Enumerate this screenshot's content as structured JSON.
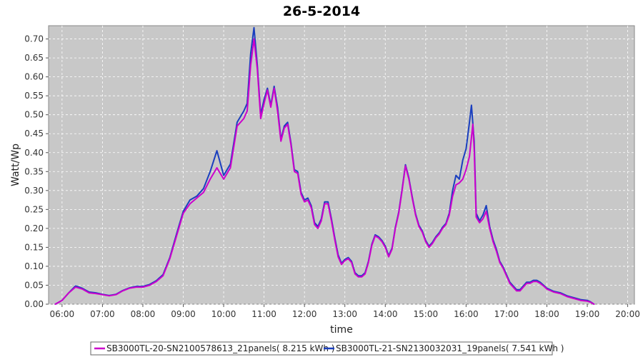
{
  "chart_data": {
    "type": "line",
    "title": "26-5-2014",
    "xlabel": "time",
    "ylabel": "Watt/Wp",
    "x_ticks": [
      "06:00",
      "07:00",
      "08:00",
      "09:00",
      "10:00",
      "11:00",
      "12:00",
      "13:00",
      "14:00",
      "15:00",
      "16:00",
      "17:00",
      "18:00",
      "19:00",
      "20:00"
    ],
    "y_ticks": [
      "0.00",
      "0.05",
      "0.10",
      "0.15",
      "0.20",
      "0.25",
      "0.30",
      "0.35",
      "0.40",
      "0.45",
      "0.50",
      "0.55",
      "0.60",
      "0.65",
      "0.70"
    ],
    "xlim": [
      "05:40",
      "20:10"
    ],
    "ylim": [
      0,
      0.735
    ],
    "grid": true,
    "legend_position": "bottom",
    "series": [
      {
        "name": "SB3000TL-20-SN2100578613_21panels( 8.215 kWh )",
        "color": "#cc00cc",
        "points": [
          [
            "05:50",
            0.0
          ],
          [
            "06:00",
            0.01
          ],
          [
            "06:10",
            0.03
          ],
          [
            "06:20",
            0.045
          ],
          [
            "06:30",
            0.04
          ],
          [
            "06:40",
            0.03
          ],
          [
            "06:50",
            0.028
          ],
          [
            "07:00",
            0.025
          ],
          [
            "07:10",
            0.022
          ],
          [
            "07:20",
            0.025
          ],
          [
            "07:30",
            0.035
          ],
          [
            "07:40",
            0.042
          ],
          [
            "07:50",
            0.045
          ],
          [
            "08:00",
            0.045
          ],
          [
            "08:10",
            0.05
          ],
          [
            "08:20",
            0.06
          ],
          [
            "08:30",
            0.075
          ],
          [
            "08:40",
            0.12
          ],
          [
            "08:50",
            0.18
          ],
          [
            "09:00",
            0.24
          ],
          [
            "09:10",
            0.265
          ],
          [
            "09:20",
            0.28
          ],
          [
            "09:30",
            0.295
          ],
          [
            "09:40",
            0.33
          ],
          [
            "09:50",
            0.36
          ],
          [
            "10:00",
            0.33
          ],
          [
            "10:10",
            0.36
          ],
          [
            "10:20",
            0.47
          ],
          [
            "10:30",
            0.49
          ],
          [
            "10:35",
            0.51
          ],
          [
            "10:40",
            0.63
          ],
          [
            "10:45",
            0.7
          ],
          [
            "10:50",
            0.62
          ],
          [
            "10:55",
            0.49
          ],
          [
            "11:00",
            0.53
          ],
          [
            "11:05",
            0.565
          ],
          [
            "11:10",
            0.52
          ],
          [
            "11:15",
            0.57
          ],
          [
            "11:20",
            0.51
          ],
          [
            "11:25",
            0.43
          ],
          [
            "11:30",
            0.465
          ],
          [
            "11:35",
            0.475
          ],
          [
            "11:40",
            0.42
          ],
          [
            "11:45",
            0.35
          ],
          [
            "11:50",
            0.345
          ],
          [
            "11:55",
            0.29
          ],
          [
            "12:00",
            0.27
          ],
          [
            "12:05",
            0.275
          ],
          [
            "12:10",
            0.255
          ],
          [
            "12:15",
            0.21
          ],
          [
            "12:20",
            0.2
          ],
          [
            "12:25",
            0.22
          ],
          [
            "12:30",
            0.265
          ],
          [
            "12:35",
            0.265
          ],
          [
            "12:40",
            0.22
          ],
          [
            "12:45",
            0.17
          ],
          [
            "12:50",
            0.125
          ],
          [
            "12:55",
            0.105
          ],
          [
            "13:00",
            0.115
          ],
          [
            "13:05",
            0.12
          ],
          [
            "13:10",
            0.11
          ],
          [
            "13:15",
            0.08
          ],
          [
            "13:20",
            0.072
          ],
          [
            "13:25",
            0.072
          ],
          [
            "13:30",
            0.08
          ],
          [
            "13:35",
            0.11
          ],
          [
            "13:40",
            0.155
          ],
          [
            "13:45",
            0.18
          ],
          [
            "13:50",
            0.175
          ],
          [
            "13:55",
            0.165
          ],
          [
            "14:00",
            0.15
          ],
          [
            "14:05",
            0.125
          ],
          [
            "14:10",
            0.145
          ],
          [
            "14:15",
            0.2
          ],
          [
            "14:20",
            0.24
          ],
          [
            "14:25",
            0.3
          ],
          [
            "14:30",
            0.365
          ],
          [
            "14:35",
            0.33
          ],
          [
            "14:40",
            0.28
          ],
          [
            "14:45",
            0.235
          ],
          [
            "14:50",
            0.205
          ],
          [
            "14:55",
            0.19
          ],
          [
            "15:00",
            0.165
          ],
          [
            "15:05",
            0.15
          ],
          [
            "15:10",
            0.16
          ],
          [
            "15:15",
            0.175
          ],
          [
            "15:20",
            0.185
          ],
          [
            "15:25",
            0.2
          ],
          [
            "15:30",
            0.21
          ],
          [
            "15:35",
            0.235
          ],
          [
            "15:40",
            0.285
          ],
          [
            "15:45",
            0.315
          ],
          [
            "15:50",
            0.32
          ],
          [
            "15:55",
            0.33
          ],
          [
            "16:00",
            0.355
          ],
          [
            "16:05",
            0.39
          ],
          [
            "16:10",
            0.475
          ],
          [
            "16:12",
            0.41
          ],
          [
            "16:15",
            0.23
          ],
          [
            "16:20",
            0.215
          ],
          [
            "16:25",
            0.225
          ],
          [
            "16:30",
            0.245
          ],
          [
            "16:35",
            0.2
          ],
          [
            "16:40",
            0.165
          ],
          [
            "16:45",
            0.14
          ],
          [
            "16:50",
            0.11
          ],
          [
            "16:55",
            0.095
          ],
          [
            "17:00",
            0.075
          ],
          [
            "17:05",
            0.055
          ],
          [
            "17:10",
            0.045
          ],
          [
            "17:15",
            0.035
          ],
          [
            "17:20",
            0.035
          ],
          [
            "17:25",
            0.045
          ],
          [
            "17:30",
            0.055
          ],
          [
            "17:35",
            0.055
          ],
          [
            "17:40",
            0.06
          ],
          [
            "17:45",
            0.06
          ],
          [
            "17:50",
            0.055
          ],
          [
            "17:55",
            0.048
          ],
          [
            "18:00",
            0.04
          ],
          [
            "18:10",
            0.032
          ],
          [
            "18:20",
            0.028
          ],
          [
            "18:30",
            0.02
          ],
          [
            "18:40",
            0.015
          ],
          [
            "18:50",
            0.01
          ],
          [
            "19:00",
            0.008
          ],
          [
            "19:05",
            0.005
          ],
          [
            "19:10",
            0.0
          ]
        ]
      },
      {
        "name": "SB3000TL-21-SN2130032031_19panels( 7.541 kWh )",
        "color": "#1a3fbf",
        "points": [
          [
            "05:50",
            0.0
          ],
          [
            "06:00",
            0.01
          ],
          [
            "06:10",
            0.03
          ],
          [
            "06:20",
            0.048
          ],
          [
            "06:30",
            0.042
          ],
          [
            "06:40",
            0.032
          ],
          [
            "06:50",
            0.03
          ],
          [
            "07:00",
            0.026
          ],
          [
            "07:10",
            0.023
          ],
          [
            "07:20",
            0.026
          ],
          [
            "07:30",
            0.036
          ],
          [
            "07:40",
            0.043
          ],
          [
            "07:50",
            0.047
          ],
          [
            "08:00",
            0.047
          ],
          [
            "08:10",
            0.052
          ],
          [
            "08:20",
            0.062
          ],
          [
            "08:30",
            0.078
          ],
          [
            "08:40",
            0.123
          ],
          [
            "08:50",
            0.185
          ],
          [
            "09:00",
            0.245
          ],
          [
            "09:10",
            0.275
          ],
          [
            "09:20",
            0.285
          ],
          [
            "09:30",
            0.305
          ],
          [
            "09:40",
            0.35
          ],
          [
            "09:50",
            0.405
          ],
          [
            "10:00",
            0.34
          ],
          [
            "10:10",
            0.37
          ],
          [
            "10:20",
            0.48
          ],
          [
            "10:30",
            0.51
          ],
          [
            "10:35",
            0.53
          ],
          [
            "10:40",
            0.66
          ],
          [
            "10:45",
            0.73
          ],
          [
            "10:50",
            0.63
          ],
          [
            "10:55",
            0.5
          ],
          [
            "11:00",
            0.54
          ],
          [
            "11:05",
            0.57
          ],
          [
            "11:10",
            0.525
          ],
          [
            "11:15",
            0.575
          ],
          [
            "11:20",
            0.52
          ],
          [
            "11:25",
            0.435
          ],
          [
            "11:30",
            0.47
          ],
          [
            "11:35",
            0.48
          ],
          [
            "11:40",
            0.425
          ],
          [
            "11:45",
            0.355
          ],
          [
            "11:50",
            0.35
          ],
          [
            "11:55",
            0.295
          ],
          [
            "12:00",
            0.275
          ],
          [
            "12:05",
            0.28
          ],
          [
            "12:10",
            0.26
          ],
          [
            "12:15",
            0.215
          ],
          [
            "12:20",
            0.205
          ],
          [
            "12:25",
            0.225
          ],
          [
            "12:30",
            0.27
          ],
          [
            "12:35",
            0.27
          ],
          [
            "12:40",
            0.225
          ],
          [
            "12:45",
            0.175
          ],
          [
            "12:50",
            0.13
          ],
          [
            "12:55",
            0.108
          ],
          [
            "13:00",
            0.118
          ],
          [
            "13:05",
            0.123
          ],
          [
            "13:10",
            0.113
          ],
          [
            "13:15",
            0.083
          ],
          [
            "13:20",
            0.075
          ],
          [
            "13:25",
            0.075
          ],
          [
            "13:30",
            0.083
          ],
          [
            "13:35",
            0.113
          ],
          [
            "13:40",
            0.158
          ],
          [
            "13:45",
            0.183
          ],
          [
            "13:50",
            0.178
          ],
          [
            "13:55",
            0.168
          ],
          [
            "14:00",
            0.153
          ],
          [
            "14:05",
            0.128
          ],
          [
            "14:10",
            0.148
          ],
          [
            "14:15",
            0.203
          ],
          [
            "14:20",
            0.243
          ],
          [
            "14:25",
            0.303
          ],
          [
            "14:30",
            0.368
          ],
          [
            "14:35",
            0.333
          ],
          [
            "14:40",
            0.283
          ],
          [
            "14:45",
            0.238
          ],
          [
            "14:50",
            0.208
          ],
          [
            "14:55",
            0.193
          ],
          [
            "15:00",
            0.168
          ],
          [
            "15:05",
            0.153
          ],
          [
            "15:10",
            0.163
          ],
          [
            "15:15",
            0.178
          ],
          [
            "15:20",
            0.188
          ],
          [
            "15:25",
            0.203
          ],
          [
            "15:30",
            0.213
          ],
          [
            "15:35",
            0.24
          ],
          [
            "15:40",
            0.3
          ],
          [
            "15:45",
            0.34
          ],
          [
            "15:50",
            0.33
          ],
          [
            "15:55",
            0.38
          ],
          [
            "16:00",
            0.41
          ],
          [
            "16:05",
            0.48
          ],
          [
            "16:08",
            0.525
          ],
          [
            "16:12",
            0.43
          ],
          [
            "16:15",
            0.24
          ],
          [
            "16:20",
            0.22
          ],
          [
            "16:25",
            0.235
          ],
          [
            "16:30",
            0.26
          ],
          [
            "16:35",
            0.205
          ],
          [
            "16:40",
            0.17
          ],
          [
            "16:45",
            0.145
          ],
          [
            "16:50",
            0.113
          ],
          [
            "16:55",
            0.098
          ],
          [
            "17:00",
            0.078
          ],
          [
            "17:05",
            0.058
          ],
          [
            "17:10",
            0.048
          ],
          [
            "17:15",
            0.038
          ],
          [
            "17:20",
            0.038
          ],
          [
            "17:25",
            0.048
          ],
          [
            "17:30",
            0.058
          ],
          [
            "17:35",
            0.058
          ],
          [
            "17:40",
            0.063
          ],
          [
            "17:45",
            0.063
          ],
          [
            "17:50",
            0.058
          ],
          [
            "17:55",
            0.05
          ],
          [
            "18:00",
            0.042
          ],
          [
            "18:10",
            0.034
          ],
          [
            "18:20",
            0.03
          ],
          [
            "18:30",
            0.022
          ],
          [
            "18:40",
            0.017
          ],
          [
            "18:50",
            0.012
          ],
          [
            "19:00",
            0.01
          ],
          [
            "19:05",
            0.006
          ],
          [
            "19:10",
            0.0
          ]
        ]
      }
    ]
  }
}
